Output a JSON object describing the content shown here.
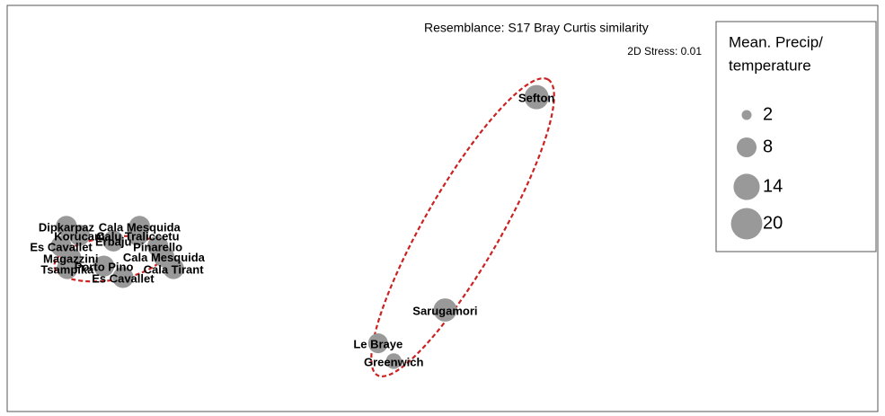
{
  "chart_data": {
    "type": "bubble",
    "title": "Resemblance: S17 Bray Curtis similarity",
    "subtitle": "2D Stress: 0.01",
    "legend_title": [
      "Mean. Precip/",
      "temperature"
    ],
    "legend_sizes": [
      2,
      8,
      14,
      20
    ],
    "color": "#999999",
    "xlim": [
      0,
      100
    ],
    "ylim": [
      0,
      100
    ],
    "labels": [
      "Sefton",
      "Sarugamori",
      "Le Braye",
      "Greenwich",
      "Dipkarpaz",
      "Cala Mesquida",
      "Korucam",
      "Calu Traliccetu",
      "Erbaju",
      "Es Cavallet",
      "Pinarello",
      "Magazzini",
      "Cala Mesquida",
      "Tsampika",
      "Porto Pino",
      "Cala Tirant",
      "Es Cavallet"
    ],
    "x": [
      60.8,
      50.3,
      42.6,
      44.4,
      6.8,
      15.2,
      8.3,
      15.0,
      12.2,
      6.2,
      17.3,
      7.3,
      18.0,
      6.9,
      11.1,
      19.1,
      13.3
    ],
    "y": [
      77.4,
      25.0,
      16.8,
      12.4,
      45.6,
      45.6,
      43.4,
      43.4,
      42.0,
      40.7,
      40.7,
      37.8,
      38.1,
      35.2,
      35.8,
      35.2,
      33.0
    ],
    "sizes": [
      12,
      11,
      8,
      5,
      9,
      9,
      9,
      9,
      9,
      9,
      9,
      9,
      9,
      9,
      9,
      9,
      9
    ]
  }
}
